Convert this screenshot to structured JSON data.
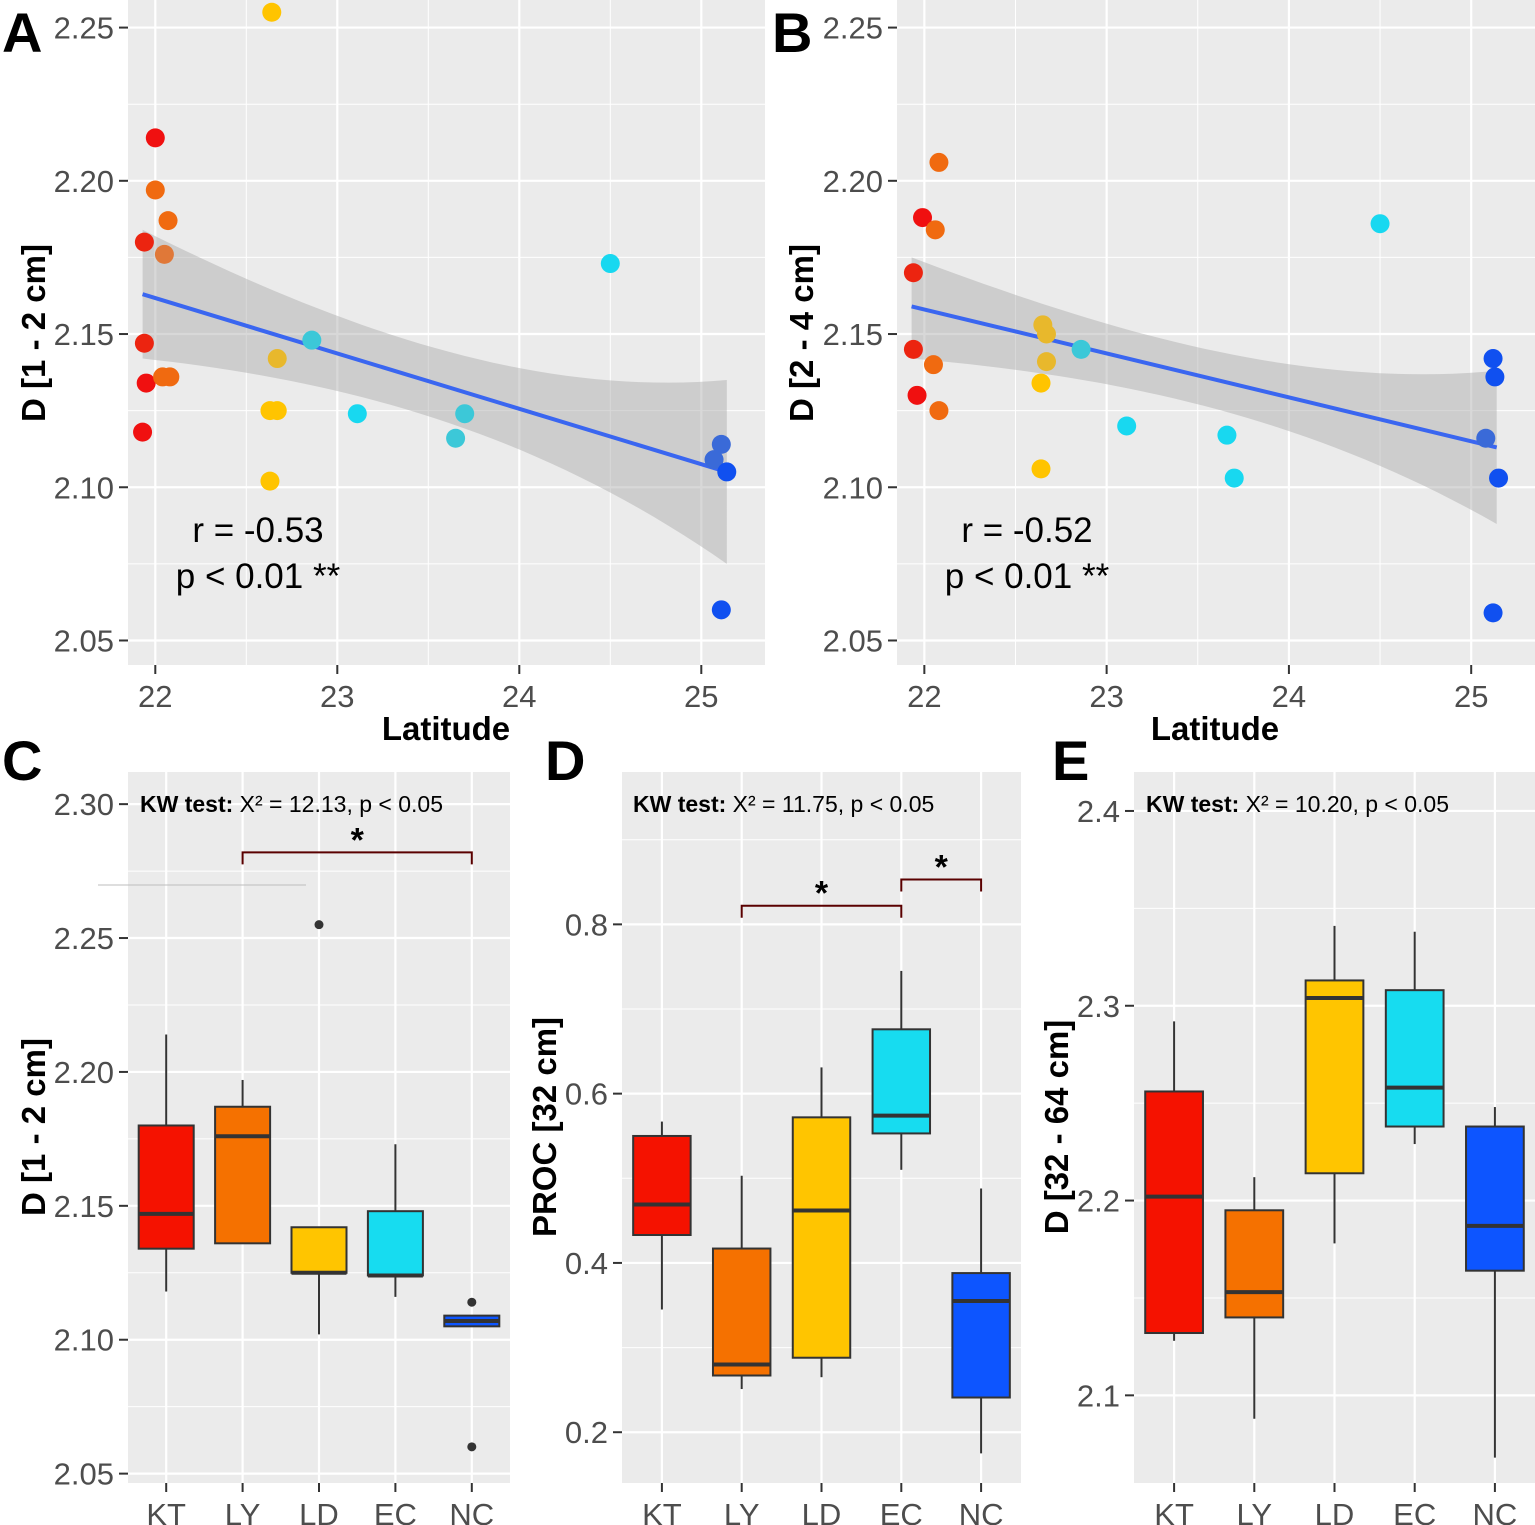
{
  "chart_data": [
    {
      "panel": "A",
      "type": "scatter",
      "xlabel": "Latitude",
      "ylabel": "D [1 - 2 cm]",
      "xlim": [
        21.85,
        25.35
      ],
      "ylim": [
        2.042,
        2.259
      ],
      "xticks": [
        "22",
        "23",
        "24",
        "25"
      ],
      "yticks": [
        "2.05",
        "2.10",
        "2.15",
        "2.20",
        "2.25"
      ],
      "points": [
        {
          "x": 22.0,
          "y": 2.214,
          "color": "#f01010"
        },
        {
          "x": 21.94,
          "y": 2.18,
          "color": "#ec2410"
        },
        {
          "x": 21.94,
          "y": 2.147,
          "color": "#ec2410"
        },
        {
          "x": 21.95,
          "y": 2.134,
          "color": "#f01010"
        },
        {
          "x": 21.93,
          "y": 2.118,
          "color": "#f01010"
        },
        {
          "x": 22.0,
          "y": 2.197,
          "color": "#f06a10"
        },
        {
          "x": 22.07,
          "y": 2.187,
          "color": "#f06a10"
        },
        {
          "x": 22.05,
          "y": 2.176,
          "color": "#e07838"
        },
        {
          "x": 22.04,
          "y": 2.136,
          "color": "#f06a10"
        },
        {
          "x": 22.08,
          "y": 2.136,
          "color": "#f06a10"
        },
        {
          "x": 22.64,
          "y": 2.255,
          "color": "#ffc400"
        },
        {
          "x": 22.67,
          "y": 2.142,
          "color": "#e8b82c"
        },
        {
          "x": 22.63,
          "y": 2.125,
          "color": "#ffc400"
        },
        {
          "x": 22.67,
          "y": 2.125,
          "color": "#ffc400"
        },
        {
          "x": 22.63,
          "y": 2.102,
          "color": "#ffc400"
        },
        {
          "x": 22.86,
          "y": 2.148,
          "color": "#3cc8d8"
        },
        {
          "x": 23.11,
          "y": 2.124,
          "color": "#18d8f0"
        },
        {
          "x": 23.7,
          "y": 2.124,
          "color": "#3cc8d8"
        },
        {
          "x": 23.65,
          "y": 2.116,
          "color": "#3cc8d8"
        },
        {
          "x": 24.5,
          "y": 2.173,
          "color": "#18d8f0"
        },
        {
          "x": 25.11,
          "y": 2.114,
          "color": "#3a6ad8"
        },
        {
          "x": 25.07,
          "y": 2.109,
          "color": "#3a6ad8"
        },
        {
          "x": 25.14,
          "y": 2.105,
          "color": "#1050f0"
        },
        {
          "x": 25.11,
          "y": 2.06,
          "color": "#1050f0"
        }
      ],
      "fit": {
        "x": [
          21.93,
          25.14
        ],
        "y": [
          2.163,
          2.105
        ],
        "ci_lower": [
          2.142,
          2.075
        ],
        "ci_upper": [
          2.184,
          2.135
        ]
      },
      "annotation": {
        "r": "r =  -0.53",
        "p": "p <  0.01 **"
      }
    },
    {
      "panel": "B",
      "type": "scatter",
      "xlabel": "Latitude",
      "ylabel": "D [2 - 4 cm]",
      "xlim": [
        21.85,
        25.35
      ],
      "ylim": [
        2.042,
        2.259
      ],
      "xticks": [
        "22",
        "23",
        "24",
        "25"
      ],
      "yticks": [
        "2.05",
        "2.10",
        "2.15",
        "2.20",
        "2.25"
      ],
      "points": [
        {
          "x": 21.99,
          "y": 2.188,
          "color": "#f01010"
        },
        {
          "x": 21.94,
          "y": 2.17,
          "color": "#ec2410"
        },
        {
          "x": 21.94,
          "y": 2.145,
          "color": "#ec2410"
        },
        {
          "x": 21.96,
          "y": 2.13,
          "color": "#f01010"
        },
        {
          "x": 22.08,
          "y": 2.206,
          "color": "#f06a10"
        },
        {
          "x": 22.06,
          "y": 2.184,
          "color": "#f06a10"
        },
        {
          "x": 22.05,
          "y": 2.14,
          "color": "#f06a10"
        },
        {
          "x": 22.08,
          "y": 2.125,
          "color": "#f06a10"
        },
        {
          "x": 22.65,
          "y": 2.153,
          "color": "#e8b82c"
        },
        {
          "x": 22.67,
          "y": 2.15,
          "color": "#e8b82c"
        },
        {
          "x": 22.67,
          "y": 2.141,
          "color": "#e8b82c"
        },
        {
          "x": 22.64,
          "y": 2.134,
          "color": "#ffc400"
        },
        {
          "x": 22.64,
          "y": 2.106,
          "color": "#ffc400"
        },
        {
          "x": 22.86,
          "y": 2.145,
          "color": "#3cc8d8"
        },
        {
          "x": 23.11,
          "y": 2.12,
          "color": "#18d8f0"
        },
        {
          "x": 23.66,
          "y": 2.117,
          "color": "#18d8f0"
        },
        {
          "x": 23.7,
          "y": 2.103,
          "color": "#18d8f0"
        },
        {
          "x": 24.5,
          "y": 2.186,
          "color": "#18d8f0"
        },
        {
          "x": 25.12,
          "y": 2.142,
          "color": "#1050f0"
        },
        {
          "x": 25.13,
          "y": 2.136,
          "color": "#1050f0"
        },
        {
          "x": 25.08,
          "y": 2.116,
          "color": "#3a6ad8"
        },
        {
          "x": 25.15,
          "y": 2.103,
          "color": "#1050f0"
        },
        {
          "x": 25.12,
          "y": 2.059,
          "color": "#1050f0"
        }
      ],
      "fit": {
        "x": [
          21.93,
          25.14
        ],
        "y": [
          2.159,
          2.113
        ],
        "ci_lower": [
          2.142,
          2.088
        ],
        "ci_upper": [
          2.175,
          2.138
        ]
      },
      "annotation": {
        "r": "r =  -0.52",
        "p": "p <  0.01 **"
      }
    },
    {
      "panel": "C",
      "type": "box",
      "ylabel": "D [1 - 2 cm]",
      "ylim": [
        2.0465,
        2.312
      ],
      "yticks": [
        "2.05",
        "2.10",
        "2.15",
        "2.20",
        "2.25",
        "2.30"
      ],
      "categories": [
        "KT",
        "LY",
        "LD",
        "EC",
        "NC"
      ],
      "colors": [
        "#f51200",
        "#f57100",
        "#ffc500",
        "#17dcf0",
        "#0d55ff"
      ],
      "boxes": [
        {
          "min": 2.118,
          "q1": 2.134,
          "median": 2.147,
          "q3": 2.18,
          "max": 2.214,
          "outliers": []
        },
        {
          "min": 2.136,
          "q1": 2.136,
          "median": 2.176,
          "q3": 2.187,
          "max": 2.197,
          "outliers": []
        },
        {
          "min": 2.102,
          "q1": 2.125,
          "median": 2.125,
          "q3": 2.142,
          "max": 2.142,
          "outliers": [
            2.255
          ]
        },
        {
          "min": 2.116,
          "q1": 2.124,
          "median": 2.124,
          "q3": 2.148,
          "max": 2.173,
          "outliers": []
        },
        {
          "min": 2.105,
          "q1": 2.105,
          "median": 2.107,
          "q3": 2.109,
          "max": 2.109,
          "outliers": [
            2.114,
            2.06
          ]
        }
      ],
      "kw_label": "KW test:",
      "kw_value": "X² = 12.13, p < 0.05",
      "significance": [
        {
          "from": "LY",
          "to": "NC",
          "level": 2.282,
          "label": "*"
        }
      ]
    },
    {
      "panel": "D",
      "type": "box",
      "ylabel": "PROC [32 cm]",
      "ylim": [
        0.14,
        0.98
      ],
      "yticks": [
        "0.2",
        "0.4",
        "0.6",
        "0.8"
      ],
      "categories": [
        "KT",
        "LY",
        "LD",
        "EC",
        "NC"
      ],
      "colors": [
        "#f51200",
        "#f57100",
        "#ffc500",
        "#17dcf0",
        "#0d55ff"
      ],
      "boxes": [
        {
          "min": 0.345,
          "q1": 0.433,
          "median": 0.469,
          "q3": 0.55,
          "max": 0.567,
          "outliers": []
        },
        {
          "min": 0.251,
          "q1": 0.267,
          "median": 0.28,
          "q3": 0.417,
          "max": 0.503,
          "outliers": []
        },
        {
          "min": 0.265,
          "q1": 0.288,
          "median": 0.462,
          "q3": 0.572,
          "max": 0.631,
          "outliers": []
        },
        {
          "min": 0.51,
          "q1": 0.553,
          "median": 0.574,
          "q3": 0.676,
          "max": 0.745,
          "outliers": []
        },
        {
          "min": 0.175,
          "q1": 0.241,
          "median": 0.355,
          "q3": 0.388,
          "max": 0.488,
          "outliers": []
        }
      ],
      "kw_label": "KW test:",
      "kw_value": "X² = 11.75, p < 0.05",
      "significance": [
        {
          "from": "LY",
          "to": "EC",
          "level": 0.822,
          "label": "*"
        },
        {
          "from": "EC",
          "to": "NC",
          "level": 0.853,
          "label": "*"
        }
      ]
    },
    {
      "panel": "E",
      "type": "box",
      "ylabel": "D [32 - 64 cm]",
      "ylim": [
        2.055,
        2.42
      ],
      "yticks": [
        "2.1",
        "2.2",
        "2.3",
        "2.4"
      ],
      "categories": [
        "KT",
        "LY",
        "LD",
        "EC",
        "NC"
      ],
      "colors": [
        "#f51200",
        "#f57100",
        "#ffc500",
        "#17dcf0",
        "#0d55ff"
      ],
      "boxes": [
        {
          "min": 2.128,
          "q1": 2.132,
          "median": 2.202,
          "q3": 2.256,
          "max": 2.292,
          "outliers": []
        },
        {
          "min": 2.088,
          "q1": 2.14,
          "median": 2.153,
          "q3": 2.195,
          "max": 2.212,
          "outliers": []
        },
        {
          "min": 2.178,
          "q1": 2.214,
          "median": 2.304,
          "q3": 2.313,
          "max": 2.341,
          "outliers": []
        },
        {
          "min": 2.229,
          "q1": 2.238,
          "median": 2.258,
          "q3": 2.308,
          "max": 2.338,
          "outliers": []
        },
        {
          "min": 2.068,
          "q1": 2.164,
          "median": 2.187,
          "q3": 2.238,
          "max": 2.248,
          "outliers": []
        }
      ],
      "kw_label": "KW test:",
      "kw_value": "X² = 10.20, p < 0.05",
      "significance": []
    }
  ]
}
